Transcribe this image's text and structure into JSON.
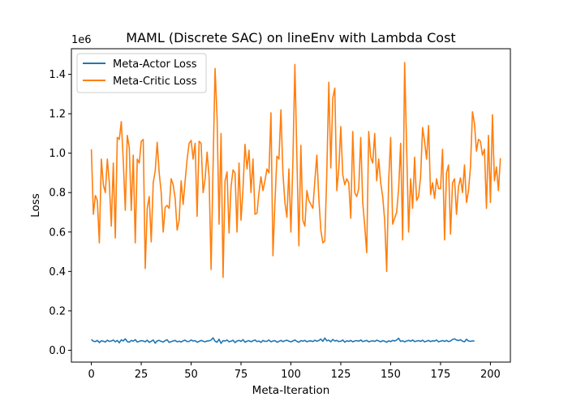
{
  "chart_data": {
    "type": "line",
    "title": "MAML (Discrete SAC) on lineEnv with Lambda Cost",
    "xlabel": "Meta-Iteration",
    "ylabel": "Loss",
    "y_offset_text": "1e6",
    "xlim": [
      -10,
      210
    ],
    "ylim": [
      -0.06,
      1.53
    ],
    "y_scale_factor": 1000000,
    "x_ticks": [
      0,
      25,
      50,
      75,
      100,
      125,
      150,
      175,
      200
    ],
    "y_ticks": [
      0.0,
      0.2,
      0.4,
      0.6,
      0.8,
      1.0,
      1.2,
      1.4
    ],
    "y_tick_labels": [
      "0.0",
      "0.2",
      "0.4",
      "0.6",
      "0.8",
      "1.0",
      "1.2",
      "1.4"
    ],
    "grid": false,
    "legend_position": "top-left",
    "series": [
      {
        "name": "Meta-Actor Loss",
        "color": "#1f77b4",
        "values": [
          0.055,
          0.046,
          0.044,
          0.05,
          0.039,
          0.048,
          0.046,
          0.042,
          0.051,
          0.045,
          0.047,
          0.052,
          0.043,
          0.05,
          0.038,
          0.053,
          0.047,
          0.058,
          0.044,
          0.041,
          0.05,
          0.046,
          0.054,
          0.042,
          0.045,
          0.049,
          0.047,
          0.043,
          0.051,
          0.04,
          0.046,
          0.052,
          0.036,
          0.048,
          0.05,
          0.045,
          0.042,
          0.049,
          0.053,
          0.04,
          0.044,
          0.047,
          0.05,
          0.043,
          0.046,
          0.042,
          0.048,
          0.051,
          0.044,
          0.045,
          0.052,
          0.047,
          0.049,
          0.041,
          0.045,
          0.05,
          0.046,
          0.043,
          0.047,
          0.048,
          0.052,
          0.063,
          0.046,
          0.041,
          0.056,
          0.035,
          0.049,
          0.047,
          0.052,
          0.043,
          0.046,
          0.051,
          0.039,
          0.047,
          0.05,
          0.045,
          0.054,
          0.041,
          0.046,
          0.049,
          0.043,
          0.048,
          0.052,
          0.044,
          0.047,
          0.04,
          0.05,
          0.045,
          0.046,
          0.052,
          0.043,
          0.047,
          0.049,
          0.041,
          0.045,
          0.05,
          0.044,
          0.048,
          0.051,
          0.046,
          0.043,
          0.047,
          0.052,
          0.045,
          0.041,
          0.049,
          0.046,
          0.05,
          0.043,
          0.047,
          0.048,
          0.044,
          0.051,
          0.046,
          0.049,
          0.057,
          0.045,
          0.062,
          0.048,
          0.051,
          0.043,
          0.055,
          0.047,
          0.05,
          0.044,
          0.046,
          0.052,
          0.041,
          0.048,
          0.045,
          0.05,
          0.043,
          0.047,
          0.049,
          0.046,
          0.052,
          0.044,
          0.047,
          0.05,
          0.043,
          0.046,
          0.048,
          0.045,
          0.051,
          0.047,
          0.043,
          0.049,
          0.046,
          0.041,
          0.048,
          0.044,
          0.05,
          0.047,
          0.052,
          0.061,
          0.045,
          0.048,
          0.043,
          0.047,
          0.05,
          0.046,
          0.052,
          0.044,
          0.047,
          0.049,
          0.045,
          0.051,
          0.043,
          0.046,
          0.05,
          0.044,
          0.048,
          0.047,
          0.052,
          0.043,
          0.046,
          0.049,
          0.045,
          0.05,
          0.044,
          0.047,
          0.055,
          0.058,
          0.052,
          0.049,
          0.054,
          0.046,
          0.043,
          0.056,
          0.047,
          0.045,
          0.048,
          0.046
        ]
      },
      {
        "name": "Meta-Critic Loss",
        "color": "#ff7f0e",
        "values": [
          1.02,
          0.69,
          0.785,
          0.76,
          0.545,
          0.97,
          0.84,
          0.8,
          0.97,
          0.85,
          0.63,
          0.95,
          0.57,
          1.08,
          1.07,
          1.16,
          0.96,
          0.71,
          1.09,
          1.03,
          0.71,
          0.99,
          0.545,
          0.97,
          0.95,
          1.06,
          1.07,
          0.415,
          0.72,
          0.78,
          0.55,
          0.85,
          0.91,
          1.055,
          0.9,
          0.8,
          0.6,
          0.725,
          0.735,
          0.72,
          0.87,
          0.84,
          0.77,
          0.61,
          0.66,
          0.86,
          0.74,
          0.86,
          0.97,
          1.05,
          1.065,
          0.97,
          1.05,
          0.68,
          1.06,
          1.05,
          0.8,
          0.87,
          1.005,
          0.88,
          0.41,
          0.935,
          1.43,
          1.18,
          0.64,
          1.1,
          0.37,
          0.86,
          0.905,
          0.595,
          0.83,
          0.915,
          0.9,
          0.6,
          0.95,
          0.66,
          0.82,
          1.045,
          0.92,
          1.015,
          0.8,
          0.97,
          0.69,
          0.695,
          0.8,
          0.88,
          0.81,
          0.86,
          0.92,
          0.9,
          1.205,
          0.48,
          0.75,
          0.985,
          0.97,
          1.22,
          0.9,
          0.75,
          0.675,
          0.92,
          0.6,
          0.96,
          1.45,
          0.98,
          0.53,
          1.04,
          0.66,
          0.63,
          0.81,
          0.76,
          0.74,
          0.72,
          0.86,
          0.99,
          0.77,
          0.61,
          0.545,
          0.555,
          0.9,
          1.36,
          0.925,
          1.28,
          1.33,
          0.81,
          0.92,
          1.135,
          0.89,
          0.84,
          0.87,
          0.85,
          0.67,
          1.11,
          0.8,
          0.78,
          0.82,
          1.08,
          0.75,
          0.63,
          0.495,
          1.11,
          0.98,
          0.95,
          1.1,
          0.86,
          0.97,
          0.85,
          0.78,
          0.66,
          0.4,
          0.86,
          1.08,
          0.64,
          0.67,
          0.7,
          0.82,
          1.05,
          0.56,
          1.46,
          1.03,
          0.6,
          0.87,
          0.72,
          0.98,
          0.76,
          0.78,
          0.88,
          1.13,
          1.06,
          0.97,
          1.14,
          0.79,
          0.85,
          0.77,
          0.87,
          0.82,
          0.82,
          1.02,
          0.56,
          0.9,
          0.94,
          0.59,
          0.85,
          0.87,
          0.69,
          0.83,
          0.875,
          0.8,
          0.94,
          0.75,
          0.81,
          0.93,
          1.21,
          1.15,
          1.01,
          1.07,
          1.06,
          0.99,
          1.02,
          0.72,
          1.09,
          0.75,
          1.195,
          0.86,
          0.93,
          0.81,
          0.975
        ]
      }
    ]
  }
}
